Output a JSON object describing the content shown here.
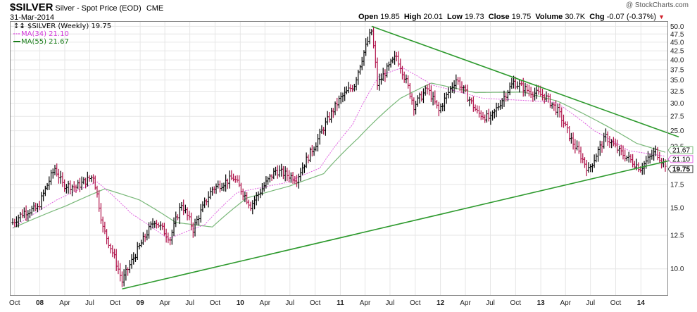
{
  "header": {
    "symbol": "$SILVER",
    "description": "Silver - Spot Price (EOD)",
    "exchange": "CME",
    "date": "31-Mar-2014",
    "watermark": "@ StockCharts.com",
    "ohlc": {
      "open_label": "Open",
      "open": "19.85",
      "high_label": "High",
      "high": "20.01",
      "low_label": "Low",
      "low": "19.73",
      "close_label": "Close",
      "close": "19.75",
      "volume_label": "Volume",
      "volume": "30.7K",
      "change_label": "Chg",
      "change": "-0.07 (-0.37%)",
      "change_icon": "down-triangle-icon"
    }
  },
  "legend": {
    "price": "$SILVER (Weekly) 19.75",
    "ma34": "MA(34) 21.10",
    "ma55": "MA(55) 21.67"
  },
  "colors": {
    "up_bar": "#000000",
    "down_bar": "#b0124a",
    "ma34": "#e060e0",
    "ma55": "#79b879",
    "trendline": "#2e9a2e",
    "grid": "#e6e6e6"
  },
  "chart_data": {
    "type": "ohlc-bar",
    "frequency": "weekly",
    "ylim": [
      8.4,
      51.5
    ],
    "yscale": "log",
    "grid": true,
    "y_ticks": [
      10.0,
      12.5,
      15.0,
      17.5,
      20.0,
      22.5,
      25.0,
      27.5,
      30.0,
      32.5,
      35.0,
      37.5,
      40.0,
      42.5,
      45.0,
      47.5,
      50.0
    ],
    "y_tick_labels": [
      "10.0",
      "12.5",
      "15.0",
      "17.5",
      "",
      "22.5",
      "25.0",
      "27.5",
      "30.0",
      "32.5",
      "35.0",
      "37.5",
      "40.0",
      "42.5",
      "45.0",
      "47.5",
      "50.0"
    ],
    "x_ticks": [
      "Oct",
      "08",
      "Apr",
      "Jul",
      "Oct",
      "09",
      "Apr",
      "Jul",
      "Oct",
      "10",
      "Apr",
      "Jul",
      "Oct",
      "11",
      "Apr",
      "Jul",
      "Oct",
      "12",
      "Apr",
      "Jul",
      "Oct",
      "13",
      "Apr",
      "Jul",
      "Oct",
      "14"
    ],
    "x_range": [
      "2007-09-24",
      "2014-03-31"
    ],
    "price_path": [
      [
        "2007-09-24",
        13.6
      ],
      [
        "2007-11-05",
        14.6
      ],
      [
        "2007-12-24",
        14.9
      ],
      [
        "2008-02-25",
        19.5
      ],
      [
        "2008-03-24",
        17.5
      ],
      [
        "2008-05-12",
        17.2
      ],
      [
        "2008-07-14",
        18.5
      ],
      [
        "2008-08-18",
        13.1
      ],
      [
        "2008-10-27",
        9.2
      ],
      [
        "2008-12-22",
        11.3
      ],
      [
        "2009-02-23",
        13.8
      ],
      [
        "2009-04-20",
        12.2
      ],
      [
        "2009-06-01",
        15.4
      ],
      [
        "2009-07-13",
        13.0
      ],
      [
        "2009-09-21",
        17.0
      ],
      [
        "2009-12-07",
        18.3
      ],
      [
        "2010-02-08",
        15.2
      ],
      [
        "2010-05-10",
        19.2
      ],
      [
        "2010-07-26",
        18.2
      ],
      [
        "2010-10-04",
        23.0
      ],
      [
        "2010-12-27",
        30.6
      ],
      [
        "2011-02-21",
        34.0
      ],
      [
        "2011-04-25",
        48.5
      ],
      [
        "2011-05-16",
        34.0
      ],
      [
        "2011-07-25",
        41.0
      ],
      [
        "2011-09-26",
        29.5
      ],
      [
        "2011-11-14",
        33.0
      ],
      [
        "2011-12-26",
        28.5
      ],
      [
        "2012-02-27",
        35.2
      ],
      [
        "2012-05-14",
        28.2
      ],
      [
        "2012-07-02",
        27.0
      ],
      [
        "2012-09-24",
        34.5
      ],
      [
        "2012-11-19",
        32.5
      ],
      [
        "2013-01-14",
        31.5
      ],
      [
        "2013-03-04",
        28.5
      ],
      [
        "2013-04-22",
        23.5
      ],
      [
        "2013-06-24",
        19.2
      ],
      [
        "2013-08-26",
        24.0
      ],
      [
        "2013-10-14",
        21.8
      ],
      [
        "2013-12-30",
        19.5
      ],
      [
        "2014-02-24",
        21.8
      ],
      [
        "2014-03-31",
        19.75
      ]
    ],
    "ma34_path": [
      [
        "2007-09-24",
        13.1
      ],
      [
        "2008-03-03",
        15.8
      ],
      [
        "2008-07-28",
        17.8
      ],
      [
        "2008-12-01",
        14.4
      ],
      [
        "2009-04-13",
        12.2
      ],
      [
        "2009-08-24",
        13.4
      ],
      [
        "2009-12-21",
        16.6
      ],
      [
        "2010-06-14",
        17.7
      ],
      [
        "2010-10-18",
        19.5
      ],
      [
        "2011-02-14",
        26.0
      ],
      [
        "2011-05-23",
        36.0
      ],
      [
        "2011-08-15",
        38.0
      ],
      [
        "2011-12-05",
        33.8
      ],
      [
        "2012-06-04",
        31.0
      ],
      [
        "2012-10-22",
        30.6
      ],
      [
        "2013-02-25",
        30.2
      ],
      [
        "2013-07-15",
        25.0
      ],
      [
        "2013-11-18",
        21.9
      ],
      [
        "2014-03-31",
        21.1
      ]
    ],
    "ma55_path": [
      [
        "2007-09-24",
        13.1
      ],
      [
        "2008-04-07",
        15.2
      ],
      [
        "2008-08-25",
        17.0
      ],
      [
        "2008-12-29",
        15.8
      ],
      [
        "2009-05-11",
        13.6
      ],
      [
        "2009-09-21",
        13.2
      ],
      [
        "2010-01-25",
        16.0
      ],
      [
        "2010-06-28",
        17.3
      ],
      [
        "2010-11-01",
        18.8
      ],
      [
        "2011-03-07",
        23.8
      ],
      [
        "2011-08-08",
        31.0
      ],
      [
        "2011-11-28",
        34.3
      ],
      [
        "2012-05-07",
        32.2
      ],
      [
        "2012-10-29",
        32.3
      ],
      [
        "2013-03-04",
        30.4
      ],
      [
        "2013-07-29",
        26.6
      ],
      [
        "2013-12-16",
        23.0
      ],
      [
        "2014-03-31",
        21.67
      ]
    ],
    "trendlines": [
      {
        "from": [
          "2011-04-25",
          50.0
        ],
        "to": [
          "2014-05-19",
          24.0
        ]
      },
      {
        "from": [
          "2008-10-27",
          8.75
        ],
        "to": [
          "2014-05-19",
          20.8
        ]
      }
    ],
    "price_labels": [
      {
        "value": 21.67,
        "label": "21.67",
        "kind": "ma55"
      },
      {
        "value": 21.1,
        "label": "21.10",
        "kind": "ma34"
      },
      {
        "value": 19.75,
        "label": "19.75",
        "kind": "last"
      }
    ]
  }
}
